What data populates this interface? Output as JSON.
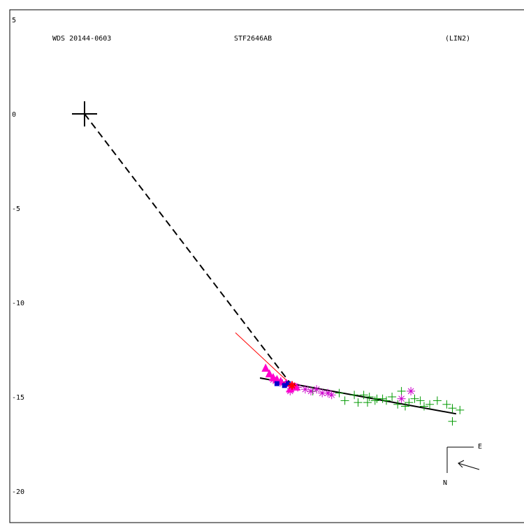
{
  "header": {
    "left": "WDS 20144-0603",
    "center": "STF2646AB",
    "right": "(LIN2)"
  },
  "chart_data": {
    "type": "scatter",
    "title": "STF2646AB",
    "xlim": [
      -4,
      23.3
    ],
    "ylim": [
      -21.6,
      5.5
    ],
    "y_ticks": [
      5,
      0,
      -5,
      -10,
      -15,
      -20
    ],
    "primary": {
      "x": 0,
      "y": 0,
      "marker": "large-plus",
      "color": "#000000"
    },
    "series": [
      {
        "marker": "plus",
        "color": "#009900",
        "points": [
          [
            12.1,
            -14.7
          ],
          [
            13.5,
            -14.8
          ],
          [
            13.8,
            -15.2
          ],
          [
            14.3,
            -14.9
          ],
          [
            14.5,
            -15.3
          ],
          [
            14.8,
            -14.9
          ],
          [
            15.0,
            -15.3
          ],
          [
            15.1,
            -15.0
          ],
          [
            15.4,
            -15.2
          ],
          [
            15.5,
            -15.1
          ],
          [
            15.8,
            -15.1
          ],
          [
            16.0,
            -15.2
          ],
          [
            16.3,
            -15.0
          ],
          [
            16.6,
            -15.4
          ],
          [
            16.8,
            -14.7
          ],
          [
            17.0,
            -15.5
          ],
          [
            17.2,
            -15.3
          ],
          [
            17.5,
            -15.1
          ],
          [
            17.8,
            -15.2
          ],
          [
            18.0,
            -15.5
          ],
          [
            18.3,
            -15.4
          ],
          [
            18.7,
            -15.2
          ],
          [
            19.2,
            -15.4
          ],
          [
            19.5,
            -15.6
          ],
          [
            19.9,
            -15.7
          ],
          [
            19.5,
            -16.3
          ]
        ]
      },
      {
        "marker": "asterisk",
        "color": "#cc00cc",
        "points": [
          [
            10.0,
            -14.1
          ],
          [
            10.5,
            -14.3
          ],
          [
            10.9,
            -14.7
          ],
          [
            11.3,
            -14.5
          ],
          [
            11.7,
            -14.6
          ],
          [
            12.0,
            -14.7
          ],
          [
            12.3,
            -14.6
          ],
          [
            12.6,
            -14.8
          ],
          [
            12.9,
            -14.8
          ],
          [
            13.1,
            -14.9
          ],
          [
            16.8,
            -15.1
          ],
          [
            17.3,
            -14.7
          ]
        ]
      },
      {
        "marker": "triangle",
        "color": "#ff00cc",
        "points": [
          [
            9.6,
            -13.5
          ],
          [
            9.8,
            -13.8
          ],
          [
            10.0,
            -14.0
          ],
          [
            10.2,
            -14.1
          ],
          [
            10.4,
            -14.2
          ],
          [
            10.7,
            -14.3
          ],
          [
            11.0,
            -14.4
          ],
          [
            11.2,
            -14.5
          ],
          [
            10.9,
            -14.6
          ]
        ]
      },
      {
        "marker": "square",
        "color": "#0000cc",
        "points": [
          [
            10.2,
            -14.3
          ],
          [
            10.6,
            -14.4
          ],
          [
            10.8,
            -14.3
          ]
        ]
      },
      {
        "marker": "star",
        "color": "#ff0000",
        "points": [
          [
            11.0,
            -14.4
          ]
        ]
      }
    ],
    "lines": [
      {
        "style": "dashed",
        "color": "#000000",
        "from": [
          0,
          0
        ],
        "to": [
          11.0,
          -14.4
        ]
      },
      {
        "style": "solid",
        "color": "#000000",
        "from": [
          9.3,
          -14.0
        ],
        "to": [
          19.7,
          -15.9
        ]
      },
      {
        "style": "solid-thin",
        "color": "#ff0000",
        "from": [
          8.0,
          -11.6
        ],
        "to": [
          11.0,
          -14.4
        ]
      }
    ],
    "orientation": {
      "east_label": "E",
      "north_label": "N"
    }
  }
}
